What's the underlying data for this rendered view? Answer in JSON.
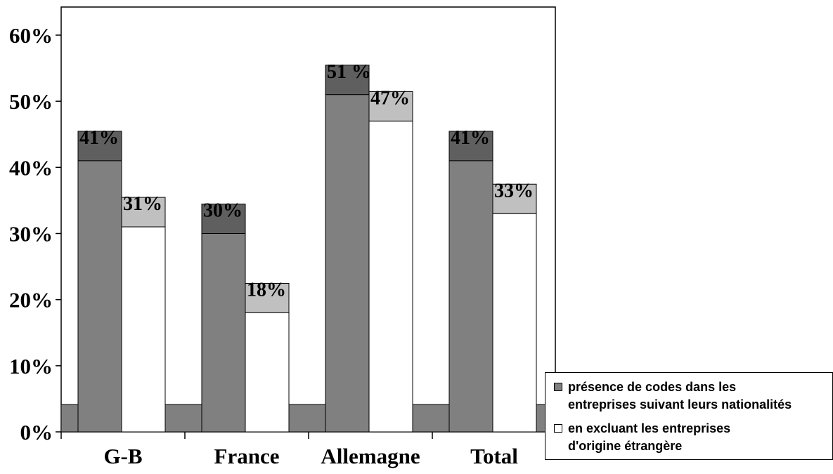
{
  "chart_data": {
    "type": "bar",
    "categories": [
      "G-B",
      "France",
      "Allemagne",
      "Total"
    ],
    "y_ticks": [
      "0%",
      "10%",
      "20%",
      "30%",
      "40%",
      "50%",
      "60%"
    ],
    "ylim": [
      0,
      60
    ],
    "series": [
      {
        "name": "présence de codes dans les entreprises suivant leurs nationalités",
        "values": [
          41,
          30,
          51,
          41
        ],
        "labels": [
          "41%",
          "30%",
          "51 %",
          "41%"
        ],
        "color": "#808080",
        "cap_color": "#5f5f5f"
      },
      {
        "name": "en excluant les entreprises d'origine étrangère",
        "values": [
          31,
          18,
          47,
          33
        ],
        "labels": [
          "31%",
          "18%",
          "47%",
          "33%"
        ],
        "color": "#ffffff",
        "cap_color": "#c0c0c0"
      }
    ],
    "floor_color": "#808080",
    "grid": false,
    "legend_position": "bottom-right"
  },
  "legend": {
    "item1": "présence de codes dans les\nentreprises suivant leurs nationalités",
    "item2": "en excluant les entreprises\nd'origine étrangère"
  }
}
